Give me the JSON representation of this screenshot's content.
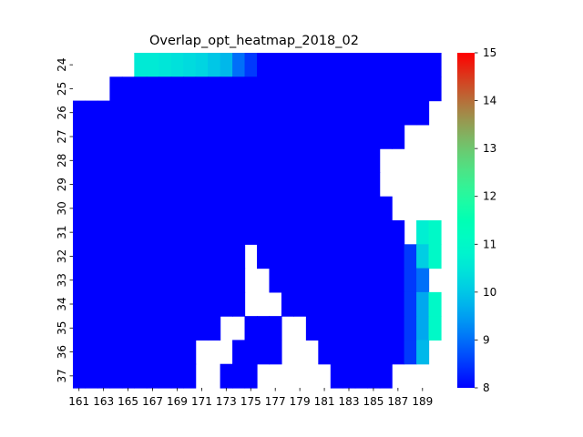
{
  "chart_data": {
    "type": "heatmap",
    "title": "Overlap_opt_heatmap_2018_02",
    "x_tick_labels": [
      "161",
      "163",
      "165",
      "167",
      "169",
      "171",
      "173",
      "175",
      "177",
      "179",
      "181",
      "183",
      "185",
      "187",
      "189"
    ],
    "y_tick_labels": [
      "24",
      "25",
      "26",
      "27",
      "28",
      "29",
      "30",
      "31",
      "32",
      "33",
      "34",
      "35",
      "36",
      "37"
    ],
    "x_values": [
      161,
      162,
      163,
      164,
      165,
      166,
      167,
      168,
      169,
      170,
      171,
      172,
      173,
      174,
      175,
      176,
      177,
      178,
      179,
      180,
      181,
      182,
      183,
      184,
      185,
      186,
      187,
      188,
      189,
      190
    ],
    "y_values": [
      24,
      25,
      26,
      27,
      28,
      29,
      30,
      31,
      32,
      33,
      34,
      35,
      36,
      37
    ],
    "colorbar": {
      "min": 8,
      "max": 15,
      "ticks": [
        "8",
        "9",
        "10",
        "11",
        "12",
        "13",
        "14",
        "15"
      ],
      "colormap": "rainbow"
    },
    "missing_value": null,
    "grid": false,
    "values": [
      [
        null,
        null,
        null,
        null,
        null,
        10.6,
        10.6,
        10.5,
        10.4,
        10.3,
        10.2,
        10.0,
        9.8,
        9.0,
        8.5,
        8.0,
        8.0,
        8.0,
        8.0,
        8.0,
        8.0,
        8.0,
        8.0,
        8.0,
        8.0,
        8.0,
        8.0,
        8.0,
        8.0,
        8.0
      ],
      [
        null,
        null,
        null,
        8.0,
        8.0,
        8.0,
        8.0,
        8.0,
        8.0,
        8.0,
        8.0,
        8.0,
        8.0,
        8.0,
        8.0,
        8.0,
        8.0,
        8.0,
        8.0,
        8.0,
        8.0,
        8.0,
        8.0,
        8.0,
        8.0,
        8.0,
        8.0,
        8.0,
        8.0,
        8.0
      ],
      [
        8.0,
        8.0,
        8.0,
        8.0,
        8.0,
        8.0,
        8.0,
        8.0,
        8.0,
        8.0,
        8.0,
        8.0,
        8.0,
        8.0,
        8.0,
        8.0,
        8.0,
        8.0,
        8.0,
        8.0,
        8.0,
        8.0,
        8.0,
        8.0,
        8.0,
        8.0,
        8.0,
        8.0,
        8.0,
        null
      ],
      [
        8.0,
        8.0,
        8.0,
        8.0,
        8.0,
        8.0,
        8.0,
        8.0,
        8.0,
        8.0,
        8.0,
        8.0,
        8.0,
        8.0,
        8.0,
        8.0,
        8.0,
        8.0,
        8.0,
        8.0,
        8.0,
        8.0,
        8.0,
        8.0,
        8.0,
        8.0,
        8.0,
        null,
        null,
        null
      ],
      [
        8.0,
        8.0,
        8.0,
        8.0,
        8.0,
        8.0,
        8.0,
        8.0,
        8.0,
        8.0,
        8.0,
        8.0,
        8.0,
        8.0,
        8.0,
        8.0,
        8.0,
        8.0,
        8.0,
        8.0,
        8.0,
        8.0,
        8.0,
        8.0,
        8.0,
        null,
        null,
        null,
        null,
        null
      ],
      [
        8.0,
        8.0,
        8.0,
        8.0,
        8.0,
        8.0,
        8.0,
        8.0,
        8.0,
        8.0,
        8.0,
        8.0,
        8.0,
        8.0,
        8.0,
        8.0,
        8.0,
        8.0,
        8.0,
        8.0,
        8.0,
        8.0,
        8.0,
        8.0,
        8.0,
        null,
        null,
        null,
        null,
        null
      ],
      [
        8.0,
        8.0,
        8.0,
        8.0,
        8.0,
        8.0,
        8.0,
        8.0,
        8.0,
        8.0,
        8.0,
        8.0,
        8.0,
        8.0,
        8.0,
        8.0,
        8.0,
        8.0,
        8.0,
        8.0,
        8.0,
        8.0,
        8.0,
        8.0,
        8.0,
        8.0,
        null,
        null,
        null,
        null
      ],
      [
        8.0,
        8.0,
        8.0,
        8.0,
        8.0,
        8.0,
        8.0,
        8.0,
        8.0,
        8.0,
        8.0,
        8.0,
        8.0,
        8.0,
        8.0,
        8.0,
        8.0,
        8.0,
        8.0,
        8.0,
        8.0,
        8.0,
        8.0,
        8.0,
        8.0,
        8.0,
        8.0,
        null,
        10.7,
        11.0
      ],
      [
        8.0,
        8.0,
        8.0,
        8.0,
        8.0,
        8.0,
        8.0,
        8.0,
        8.0,
        8.0,
        8.0,
        8.0,
        8.0,
        8.0,
        null,
        8.0,
        8.0,
        8.0,
        8.0,
        8.0,
        8.0,
        8.0,
        8.0,
        8.0,
        8.0,
        8.0,
        8.0,
        8.5,
        10.1,
        11.0
      ],
      [
        8.0,
        8.0,
        8.0,
        8.0,
        8.0,
        8.0,
        8.0,
        8.0,
        8.0,
        8.0,
        8.0,
        8.0,
        8.0,
        8.0,
        null,
        null,
        8.0,
        8.0,
        8.0,
        8.0,
        8.0,
        8.0,
        8.0,
        8.0,
        8.0,
        8.0,
        8.0,
        8.5,
        9.0,
        null
      ],
      [
        8.0,
        8.0,
        8.0,
        8.0,
        8.0,
        8.0,
        8.0,
        8.0,
        8.0,
        8.0,
        8.0,
        8.0,
        8.0,
        8.0,
        null,
        null,
        null,
        8.0,
        8.0,
        8.0,
        8.0,
        8.0,
        8.0,
        8.0,
        8.0,
        8.0,
        8.0,
        8.5,
        9.6,
        11.0
      ],
      [
        8.0,
        8.0,
        8.0,
        8.0,
        8.0,
        8.0,
        8.0,
        8.0,
        8.0,
        8.0,
        8.0,
        8.0,
        null,
        null,
        8.0,
        8.0,
        8.0,
        null,
        null,
        8.0,
        8.0,
        8.0,
        8.0,
        8.0,
        8.0,
        8.0,
        8.0,
        8.5,
        9.6,
        11.0
      ],
      [
        8.0,
        8.0,
        8.0,
        8.0,
        8.0,
        8.0,
        8.0,
        8.0,
        8.0,
        8.0,
        null,
        null,
        null,
        8.0,
        8.0,
        8.0,
        8.0,
        null,
        null,
        null,
        8.0,
        8.0,
        8.0,
        8.0,
        8.0,
        8.0,
        8.0,
        8.5,
        9.8,
        null
      ],
      [
        8.0,
        8.0,
        8.0,
        8.0,
        8.0,
        8.0,
        8.0,
        8.0,
        8.0,
        8.0,
        null,
        null,
        8.0,
        8.0,
        8.0,
        null,
        null,
        null,
        null,
        null,
        null,
        8.0,
        8.0,
        8.0,
        8.0,
        8.0,
        null,
        null,
        null,
        null
      ]
    ]
  }
}
